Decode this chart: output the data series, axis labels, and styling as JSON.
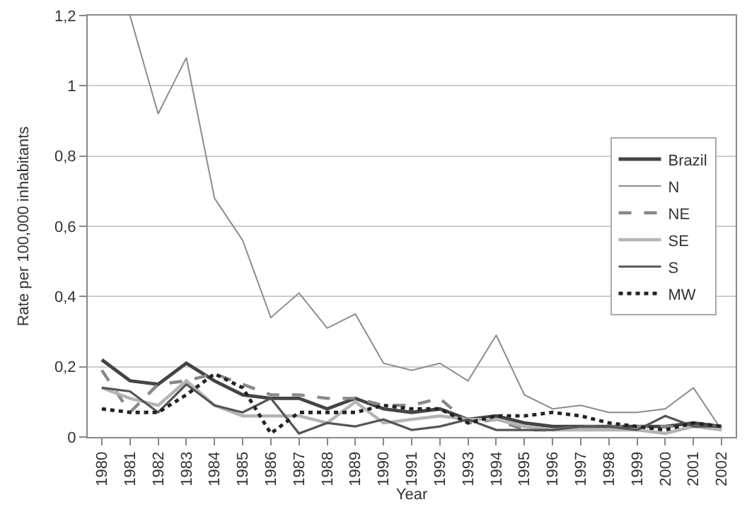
{
  "chart_data": {
    "type": "line",
    "xlabel": "Year",
    "ylabel": "Rate per 100,000 inhabitants",
    "categories": [
      "1980",
      "1981",
      "1982",
      "1983",
      "1984",
      "1985",
      "1986",
      "1987",
      "1988",
      "1989",
      "1990",
      "1991",
      "1992",
      "1993",
      "1994",
      "1995",
      "1996",
      "1997",
      "1998",
      "1999",
      "2000",
      "2001",
      "2002"
    ],
    "ylim": [
      0,
      1.2
    ],
    "yticks": [
      0,
      {
        "value": 0.2,
        "label": "0,2"
      },
      {
        "value": 0.4,
        "label": "0,4"
      },
      {
        "value": 0.6,
        "label": "0,6"
      },
      {
        "value": 0.8,
        "label": "0,8"
      },
      1,
      {
        "value": 1.2,
        "label": "1,2"
      }
    ],
    "grid": "y",
    "legend": "right",
    "marker": "none",
    "series": [
      {
        "name": "Brazil",
        "color": "#444444",
        "line_style": "solid",
        "values": [
          0.22,
          0.16,
          0.15,
          0.21,
          0.16,
          0.12,
          0.11,
          0.11,
          0.08,
          0.11,
          0.08,
          0.07,
          0.08,
          0.05,
          0.06,
          0.04,
          0.03,
          0.03,
          0.03,
          0.03,
          0.03,
          0.04,
          0.03
        ]
      },
      {
        "name": "N",
        "color": "#8c8c8c",
        "line_style": "solid",
        "values": [
          null,
          1.2,
          0.92,
          1.08,
          0.68,
          0.56,
          0.34,
          0.41,
          0.31,
          0.35,
          0.21,
          0.19,
          0.21,
          0.16,
          0.29,
          0.12,
          0.08,
          0.09,
          0.07,
          0.07,
          0.08,
          0.14,
          0.02
        ]
      },
      {
        "name": "NE",
        "color": "#888888",
        "line_style": "dashed",
        "values": [
          0.19,
          0.07,
          0.15,
          0.16,
          0.18,
          0.15,
          0.12,
          0.12,
          0.11,
          0.11,
          0.09,
          0.09,
          0.11,
          0.04,
          0.05,
          0.02,
          0.02,
          0.03,
          0.03,
          0.03,
          0.03,
          0.03,
          0.03
        ]
      },
      {
        "name": "SE",
        "color": "#b4b4b4",
        "line_style": "solid",
        "values": [
          0.14,
          0.11,
          0.09,
          0.16,
          0.09,
          0.06,
          0.06,
          0.06,
          0.04,
          0.1,
          0.04,
          0.05,
          0.06,
          0.05,
          0.05,
          0.03,
          0.02,
          0.02,
          0.02,
          0.02,
          0.01,
          0.03,
          0.02
        ]
      },
      {
        "name": "S",
        "color": "#555555",
        "line_style": "solid",
        "values": [
          0.14,
          0.13,
          0.07,
          0.15,
          0.09,
          0.07,
          0.11,
          0.01,
          0.04,
          0.03,
          0.05,
          0.02,
          0.03,
          0.05,
          0.02,
          0.02,
          0.02,
          0.03,
          0.03,
          0.02,
          0.06,
          0.03,
          0.03
        ]
      },
      {
        "name": "MW",
        "color": "#222222",
        "line_style": "dotted",
        "values": [
          0.08,
          0.07,
          0.07,
          0.12,
          0.18,
          0.14,
          0.01,
          0.07,
          0.07,
          0.07,
          0.09,
          0.08,
          0.08,
          0.04,
          0.06,
          0.06,
          0.07,
          0.06,
          0.04,
          0.03,
          0.02,
          0.04,
          0.03
        ]
      }
    ]
  }
}
